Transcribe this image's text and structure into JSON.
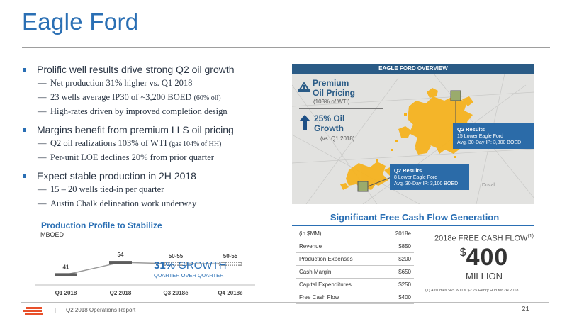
{
  "title": "Eagle Ford",
  "bullets": [
    {
      "text": "Prolific well results drive strong Q2 oil growth",
      "subs": [
        {
          "text": "Net production 31% higher vs. Q1 2018",
          "note": ""
        },
        {
          "text": "23 wells average IP30 of ~3,200 BOED",
          "note": "(60% oil)"
        },
        {
          "text": "High-rates driven by improved completion design",
          "note": ""
        }
      ]
    },
    {
      "text": "Margins benefit from premium LLS oil pricing",
      "subs": [
        {
          "text": "Q2 oil realizations 103% of WTI",
          "note": "(gas 104% of HH)"
        },
        {
          "text": "Per-unit LOE declines 20% from prior quarter",
          "note": ""
        }
      ]
    },
    {
      "text": "Expect stable production in 2H 2018",
      "subs": [
        {
          "text": "15 – 20 wells tied-in per quarter",
          "note": ""
        },
        {
          "text": "Austin Chalk delineation work underway",
          "note": ""
        }
      ]
    }
  ],
  "map": {
    "header": "EAGLE FORD OVERVIEW",
    "premium_title": "Premium Oil Pricing",
    "premium_line1": "Premium",
    "premium_line2": "Oil Pricing",
    "premium_sub": "(103% of WTI)",
    "growth_line1": "25% Oil",
    "growth_line2": "Growth",
    "growth_sub": "(vs. Q1 2018)",
    "callout_upper": {
      "title": "Q2 Results",
      "line1": "15 Lower Eagle Ford",
      "line2": "Avg. 30-Day IP: 3,300 BOED"
    },
    "callout_lower": {
      "title": "Q2 Results",
      "line1": "8 Lower Eagle Ford",
      "line2": "Avg. 30-Day IP: 3,100 BOED"
    },
    "county": "Duval",
    "accent": "#f6b21a"
  },
  "chart": {
    "title": "Production Profile to Stabilize",
    "unit": "MBOED",
    "growth_pct": "31%",
    "growth_word": "GROWTH",
    "growth_sub": "QUARTER OVER QUARTER"
  },
  "chart_data": {
    "type": "line",
    "categories": [
      "Q1 2018",
      "Q2 2018",
      "Q3 2018e",
      "Q4 2018e"
    ],
    "values": [
      41,
      54,
      52.5,
      52.5
    ],
    "labels": [
      "41",
      "54",
      "50-55",
      "50-55"
    ],
    "ylabel": "MBOED",
    "title": "Production Profile to Stabilize"
  },
  "fcf": {
    "title": "Significant Free Cash Flow Generation",
    "header": {
      "label": "(in $MM)",
      "value": "2018e"
    },
    "rows": [
      {
        "label": "Revenue",
        "value": "$850"
      },
      {
        "label": "Production Expenses",
        "value": "$200"
      },
      {
        "label": "Cash Margin",
        "value": "$650"
      },
      {
        "label": "Capital Expenditures",
        "value": "$250"
      },
      {
        "label": "Free Cash Flow",
        "value": "$400"
      }
    ],
    "big_label": "2018e FREE CASH FLOW",
    "big_label_sup": "(1)",
    "big_currency": "$",
    "big_value": "400",
    "big_unit": "MILLION",
    "footnote": "(1) Assumes $65 WTI & $2.75 Henry Hub for 2H 2018."
  },
  "footer": {
    "separator": "|",
    "report": "Q2 2018 Operations Report",
    "page": "21",
    "logo_color": "#e8502a"
  }
}
